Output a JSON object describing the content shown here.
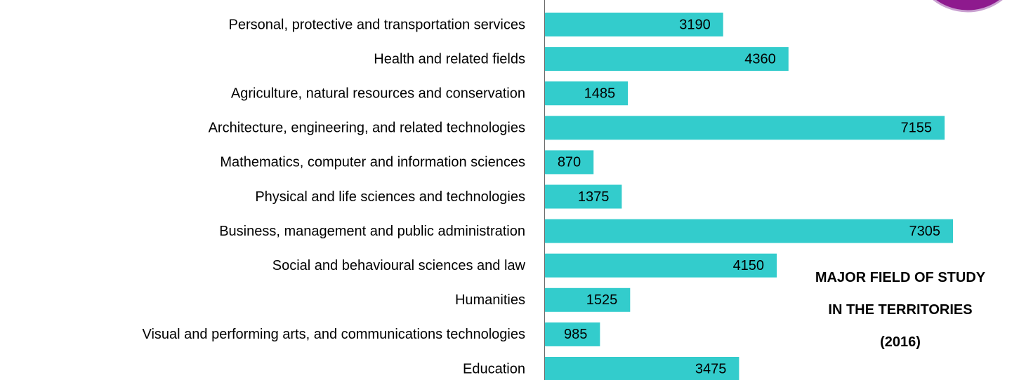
{
  "chart_data": {
    "type": "bar",
    "orientation": "horizontal",
    "title": "MAJOR FIELD OF STUDY IN THE TERRITORIES (2016)",
    "categories": [
      "Personal, protective and transportation services",
      "Health and related fields",
      "Agriculture, natural resources and conservation",
      "Architecture, engineering, and related technologies",
      "Mathematics, computer and information sciences",
      "Physical and life sciences and technologies",
      "Business, management and public administration",
      "Social and behavioural sciences and law",
      "Humanities",
      "Visual and performing arts, and communications technologies",
      "Education"
    ],
    "values": [
      3190,
      4360,
      1485,
      7155,
      870,
      1375,
      7305,
      4150,
      1525,
      985,
      3475
    ],
    "color": "#33cccc"
  }
}
